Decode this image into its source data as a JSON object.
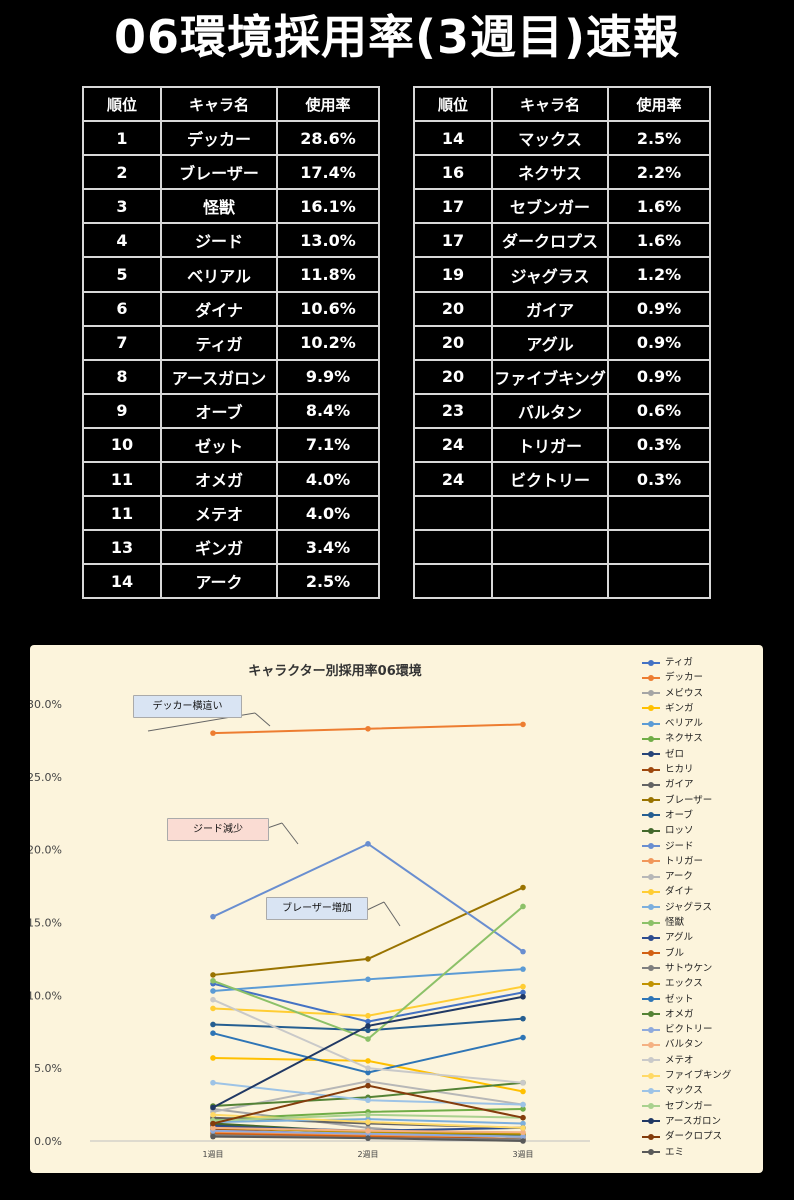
{
  "page": {
    "title": "06環境採用率(3週目)速報"
  },
  "table_headers": [
    "順位",
    "キャラ名",
    "使用率"
  ],
  "left_table": [
    [
      "1",
      "デッカー",
      "28.6%"
    ],
    [
      "2",
      "ブレーザー",
      "17.4%"
    ],
    [
      "3",
      "怪獣",
      "16.1%"
    ],
    [
      "4",
      "ジード",
      "13.0%"
    ],
    [
      "5",
      "ベリアル",
      "11.8%"
    ],
    [
      "6",
      "ダイナ",
      "10.6%"
    ],
    [
      "7",
      "ティガ",
      "10.2%"
    ],
    [
      "8",
      "アースガロン",
      "9.9%"
    ],
    [
      "9",
      "オーブ",
      "8.4%"
    ],
    [
      "10",
      "ゼット",
      "7.1%"
    ],
    [
      "11",
      "オメガ",
      "4.0%"
    ],
    [
      "11",
      "メテオ",
      "4.0%"
    ],
    [
      "13",
      "ギンガ",
      "3.4%"
    ],
    [
      "14",
      "アーク",
      "2.5%"
    ]
  ],
  "right_table": [
    [
      "14",
      "マックス",
      "2.5%"
    ],
    [
      "16",
      "ネクサス",
      "2.2%"
    ],
    [
      "17",
      "セブンガー",
      "1.6%"
    ],
    [
      "17",
      "ダークロプス",
      "1.6%"
    ],
    [
      "19",
      "ジャグラス",
      "1.2%"
    ],
    [
      "20",
      "ガイア",
      "0.9%"
    ],
    [
      "20",
      "アグル",
      "0.9%"
    ],
    [
      "20",
      "ファイブキング",
      "0.9%"
    ],
    [
      "23",
      "バルタン",
      "0.6%"
    ],
    [
      "24",
      "トリガー",
      "0.3%"
    ],
    [
      "24",
      "ビクトリー",
      "0.3%"
    ],
    [
      "",
      "",
      ""
    ],
    [
      "",
      "",
      ""
    ],
    [
      "",
      "",
      ""
    ]
  ],
  "chart_data": {
    "type": "line",
    "title": "キャラクター別採用率06環境",
    "x": [
      "1週目",
      "2週目",
      "3週目"
    ],
    "ylim": [
      0,
      30
    ],
    "yticks": [
      "0.0%",
      "5.0%",
      "10.0%",
      "15.0%",
      "20.0%",
      "25.0%",
      "30.0%"
    ],
    "grid": false,
    "legend_position": "right",
    "annotations": [
      "デッカー横這い",
      "ジード減少",
      "ブレーザー増加"
    ],
    "series": [
      {
        "name": "ティガ",
        "color": "#4472c4",
        "values": [
          10.8,
          8.2,
          10.2
        ]
      },
      {
        "name": "デッカー",
        "color": "#ed7d31",
        "values": [
          28.0,
          28.3,
          28.6
        ]
      },
      {
        "name": "メビウス",
        "color": "#a5a5a5",
        "values": [
          2.2,
          0.9,
          0.2
        ]
      },
      {
        "name": "ギンガ",
        "color": "#ffc000",
        "values": [
          5.7,
          5.5,
          3.4
        ]
      },
      {
        "name": "ベリアル",
        "color": "#5b9bd5",
        "values": [
          10.3,
          11.1,
          11.8
        ]
      },
      {
        "name": "ネクサス",
        "color": "#70ad47",
        "values": [
          1.5,
          2.0,
          2.2
        ]
      },
      {
        "name": "ゼロ",
        "color": "#264478",
        "values": [
          1.1,
          0.5,
          0.3
        ]
      },
      {
        "name": "ヒカリ",
        "color": "#9e480e",
        "values": [
          0.8,
          0.4,
          0.1
        ]
      },
      {
        "name": "ガイア",
        "color": "#636363",
        "values": [
          1.6,
          1.2,
          0.9
        ]
      },
      {
        "name": "ブレーザー",
        "color": "#997300",
        "values": [
          11.4,
          12.5,
          17.4
        ]
      },
      {
        "name": "オーブ",
        "color": "#255e91",
        "values": [
          8.0,
          7.6,
          8.4
        ]
      },
      {
        "name": "ロッソ",
        "color": "#43682b",
        "values": [
          1.2,
          0.6,
          0.4
        ]
      },
      {
        "name": "ジード",
        "color": "#698ed0",
        "values": [
          15.4,
          20.4,
          13.0
        ]
      },
      {
        "name": "トリガー",
        "color": "#f1975a",
        "values": [
          0.6,
          0.4,
          0.3
        ]
      },
      {
        "name": "アーク",
        "color": "#b7b7b7",
        "values": [
          2.0,
          4.1,
          2.5
        ]
      },
      {
        "name": "ダイナ",
        "color": "#ffcd33",
        "values": [
          9.1,
          8.6,
          10.6
        ]
      },
      {
        "name": "ジャグラス",
        "color": "#7cafdd",
        "values": [
          1.3,
          1.5,
          1.2
        ]
      },
      {
        "name": "怪獣",
        "color": "#8cc168",
        "values": [
          11.0,
          7.0,
          16.1
        ]
      },
      {
        "name": "アグル",
        "color": "#2e4d8f",
        "values": [
          1.0,
          0.7,
          0.9
        ]
      },
      {
        "name": "ブル",
        "color": "#d26012",
        "values": [
          0.5,
          0.3,
          0.1
        ]
      },
      {
        "name": "サトウケン",
        "color": "#7f7f7f",
        "values": [
          0.4,
          0.2,
          0.1
        ]
      },
      {
        "name": "エックス",
        "color": "#c09200",
        "values": [
          0.9,
          0.6,
          0.5
        ]
      },
      {
        "name": "ゼット",
        "color": "#2e75b6",
        "values": [
          7.4,
          4.7,
          7.1
        ]
      },
      {
        "name": "オメガ",
        "color": "#548235",
        "values": [
          2.4,
          3.0,
          4.0
        ]
      },
      {
        "name": "ビクトリー",
        "color": "#8faadc",
        "values": [
          0.7,
          0.5,
          0.3
        ]
      },
      {
        "name": "バルタン",
        "color": "#f4b183",
        "values": [
          0.9,
          0.7,
          0.6
        ]
      },
      {
        "name": "メテオ",
        "color": "#c9c9c9",
        "values": [
          9.7,
          5.0,
          4.0
        ]
      },
      {
        "name": "ファイブキング",
        "color": "#ffd966",
        "values": [
          1.8,
          1.3,
          0.9
        ]
      },
      {
        "name": "マックス",
        "color": "#9dc3e6",
        "values": [
          4.0,
          2.8,
          2.5
        ]
      },
      {
        "name": "セブンガー",
        "color": "#a9d18e",
        "values": [
          1.4,
          1.8,
          1.6
        ]
      },
      {
        "name": "アースガロン",
        "color": "#203864",
        "values": [
          2.3,
          7.9,
          9.9
        ]
      },
      {
        "name": "ダークロプス",
        "color": "#843c0c",
        "values": [
          1.2,
          3.8,
          1.6
        ]
      },
      {
        "name": "エミ",
        "color": "#595959",
        "values": [
          0.3,
          0.2,
          0.0
        ]
      }
    ]
  }
}
